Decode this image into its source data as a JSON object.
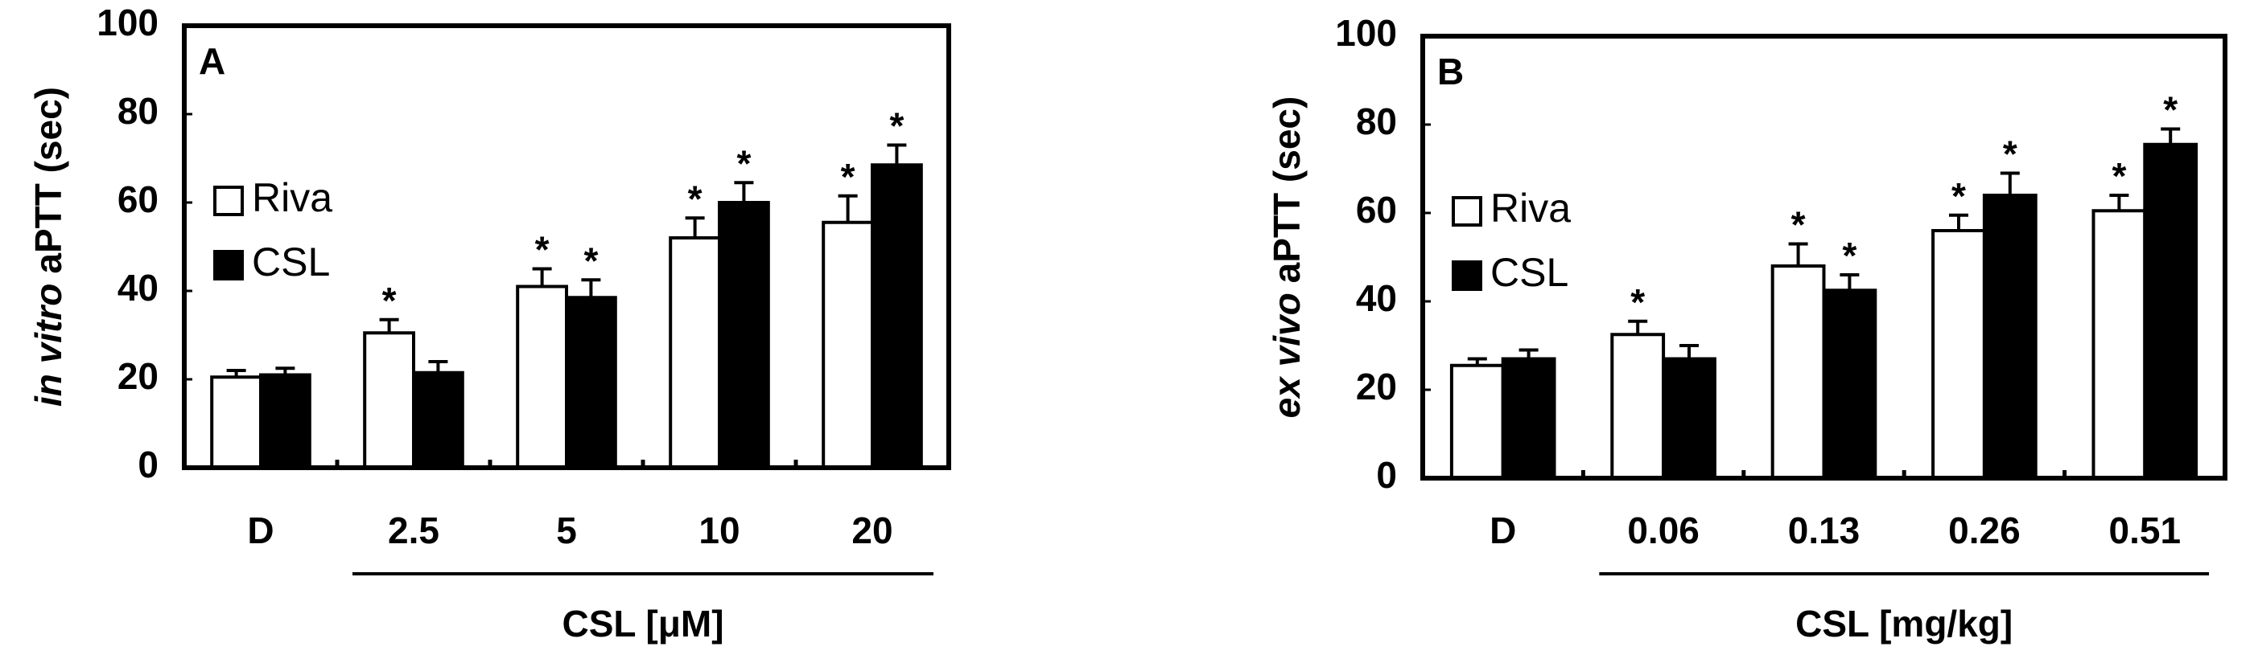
{
  "chart_data": [
    {
      "type": "bar",
      "panel": "A",
      "ylabel": [
        "in vitro",
        "aPTT (sec)"
      ],
      "xlabel": "CSL [μM]",
      "categories": [
        "D",
        "2.5",
        "5",
        "10",
        "20"
      ],
      "ylim": [
        0,
        100
      ],
      "yticks": [
        0,
        20,
        40,
        60,
        80,
        100
      ],
      "grid": false,
      "legend": "upper left",
      "series": [
        {
          "name": "Riva",
          "color": "#ffffff",
          "values": [
            20.5,
            30.5,
            41,
            52,
            55.5
          ],
          "errors": [
            1.5,
            3,
            4,
            4.5,
            6
          ],
          "annotations": [
            null,
            "*",
            "*",
            "*",
            "*"
          ]
        },
        {
          "name": "CSL",
          "color": "#000000",
          "values": [
            21,
            21.5,
            38.5,
            60,
            68.5
          ],
          "errors": [
            1.5,
            2.5,
            4,
            4.5,
            4.5
          ],
          "annotations": [
            null,
            null,
            "*",
            "*",
            "*"
          ]
        }
      ]
    },
    {
      "type": "bar",
      "panel": "B",
      "ylabel": [
        "ex vivo",
        "aPTT (sec)"
      ],
      "xlabel": "CSL [mg/kg]",
      "categories": [
        "D",
        "0.06",
        "0.13",
        "0.26",
        "0.51"
      ],
      "ylim": [
        0,
        100
      ],
      "yticks": [
        0,
        20,
        40,
        60,
        80,
        100
      ],
      "grid": false,
      "legend": "upper left",
      "series": [
        {
          "name": "Riva",
          "color": "#ffffff",
          "values": [
            25.5,
            32.5,
            48,
            56,
            60.5
          ],
          "errors": [
            1.5,
            3,
            5,
            3.5,
            3.5
          ],
          "annotations": [
            null,
            "*",
            "*",
            "*",
            "*"
          ]
        },
        {
          "name": "CSL",
          "color": "#000000",
          "values": [
            27,
            27,
            42.5,
            64,
            75.5
          ],
          "errors": [
            2,
            3,
            3.5,
            5,
            3.5
          ],
          "annotations": [
            null,
            null,
            "*",
            "*",
            "*"
          ]
        }
      ]
    }
  ]
}
